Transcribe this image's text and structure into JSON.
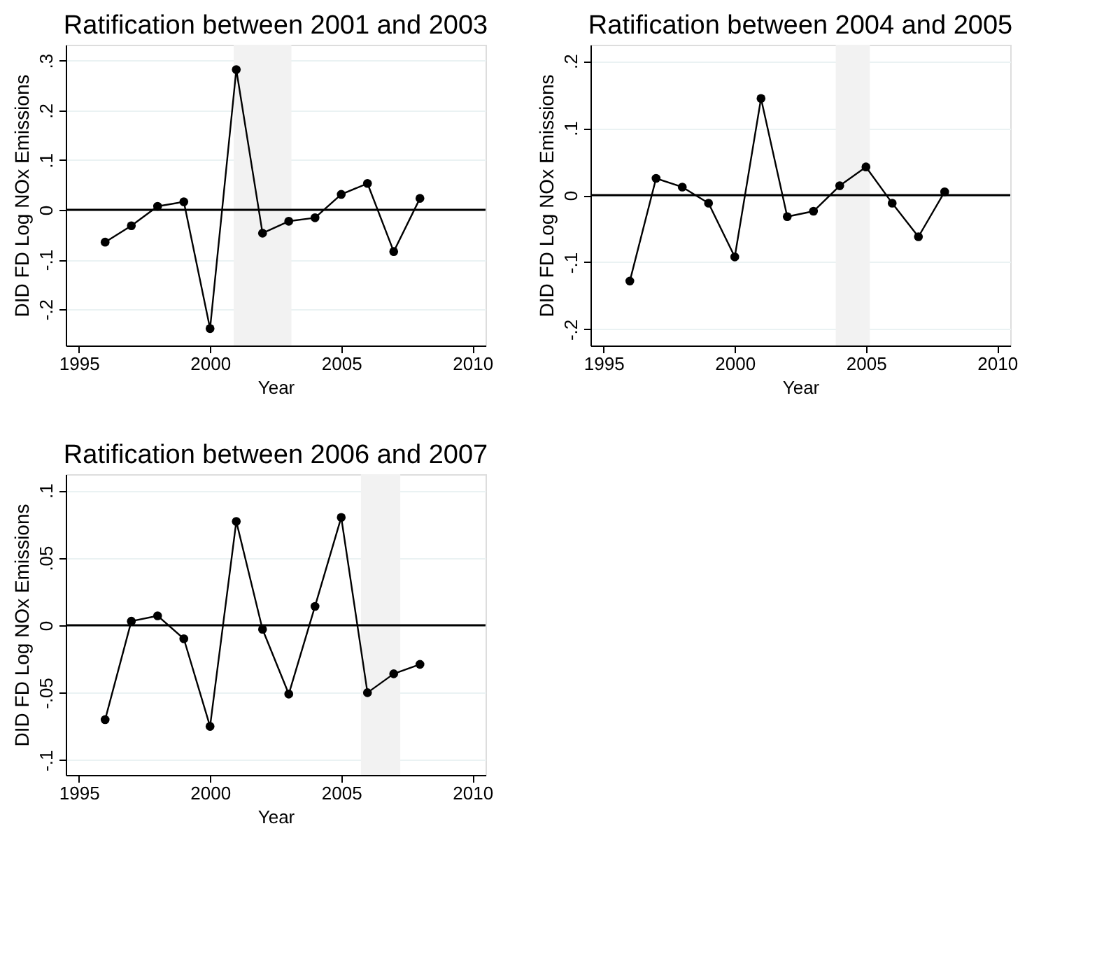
{
  "chart_data": [
    {
      "type": "line",
      "title": "Ratification between 2001 and 2003",
      "xlabel": "Year",
      "ylabel": "DID FD Log NOx Emissions",
      "x": [
        1996,
        1997,
        1998,
        1999,
        2000,
        2001,
        2002,
        2003,
        2004,
        2005,
        2006,
        2007,
        2008
      ],
      "series": [
        {
          "color": "#000000",
          "values": [
            -0.065,
            -0.032,
            0.007,
            0.016,
            -0.239,
            0.282,
            -0.047,
            -0.023,
            -0.016,
            0.031,
            0.053,
            -0.084,
            0.023
          ]
        }
      ],
      "xlim": [
        1994.5,
        2010.5
      ],
      "xticks": [
        1995,
        2000,
        2005,
        2010
      ],
      "ylim": [
        -0.273,
        0.332
      ],
      "yticks": [
        {
          "value": -0.2,
          "label": "-.2"
        },
        {
          "value": -0.1,
          "label": "-.1"
        },
        0,
        {
          "value": 0.1,
          "label": ".1"
        },
        {
          "value": 0.2,
          "label": ".2"
        },
        {
          "value": 0.3,
          "label": ".3"
        }
      ],
      "ref_lines": [
        {
          "axis": "y",
          "value": 0,
          "color": "#000000"
        }
      ],
      "bands": [
        {
          "axis": "x",
          "from": 2000.9,
          "to": 2003.1,
          "color": "#f2f2f2"
        }
      ],
      "grid": "y",
      "marker": "circle",
      "line_style": "solid"
    },
    {
      "type": "line",
      "title": "Ratification between 2004 and 2005",
      "xlabel": "Year",
      "ylabel": "DID FD Log NOx Emissions",
      "x": [
        1996,
        1997,
        1998,
        1999,
        2000,
        2001,
        2002,
        2003,
        2004,
        2005,
        2006,
        2007,
        2008
      ],
      "series": [
        {
          "color": "#000000",
          "values": [
            -0.128,
            0.025,
            0.012,
            -0.012,
            -0.092,
            0.144,
            -0.032,
            -0.024,
            0.014,
            0.042,
            -0.012,
            -0.062,
            0.005
          ]
        }
      ],
      "xlim": [
        1994.5,
        2010.5
      ],
      "xticks": [
        1995,
        2000,
        2005,
        2010
      ],
      "ylim": [
        -0.224,
        0.224
      ],
      "yticks": [
        {
          "value": -0.2,
          "label": "-.2"
        },
        {
          "value": -0.1,
          "label": "-.1"
        },
        0,
        {
          "value": 0.1,
          "label": ".1"
        },
        {
          "value": 0.2,
          "label": ".2"
        }
      ],
      "ref_lines": [
        {
          "axis": "y",
          "value": 0,
          "color": "#000000"
        }
      ],
      "bands": [
        {
          "axis": "x",
          "from": 2003.85,
          "to": 2005.15,
          "color": "#f2f2f2"
        }
      ],
      "grid": "y",
      "marker": "circle",
      "line_style": "solid"
    },
    {
      "type": "line",
      "title": "Ratification between 2006 and 2007",
      "xlabel": "Year",
      "ylabel": "DID FD Log NOx Emissions",
      "x": [
        1996,
        1997,
        1998,
        1999,
        2000,
        2001,
        2002,
        2003,
        2004,
        2005,
        2006,
        2007,
        2008
      ],
      "series": [
        {
          "color": "#000000",
          "values": [
            -0.07,
            0.003,
            0.007,
            -0.01,
            -0.075,
            0.077,
            -0.003,
            -0.051,
            0.014,
            0.08,
            -0.05,
            -0.036,
            -0.029
          ]
        }
      ],
      "xlim": [
        1994.5,
        2010.5
      ],
      "xticks": [
        1995,
        2000,
        2005,
        2010
      ],
      "ylim": [
        -0.111,
        0.112
      ],
      "yticks": [
        {
          "value": -0.1,
          "label": "-.1"
        },
        {
          "value": -0.05,
          "label": "-.05"
        },
        0,
        {
          "value": 0.05,
          "label": ".05"
        },
        {
          "value": 0.1,
          "label": ".1"
        }
      ],
      "ref_lines": [
        {
          "axis": "y",
          "value": 0,
          "color": "#000000"
        }
      ],
      "bands": [
        {
          "axis": "x",
          "from": 2005.75,
          "to": 2007.25,
          "color": "#f2f2f2"
        }
      ],
      "grid": "y",
      "marker": "circle",
      "line_style": "solid"
    }
  ]
}
